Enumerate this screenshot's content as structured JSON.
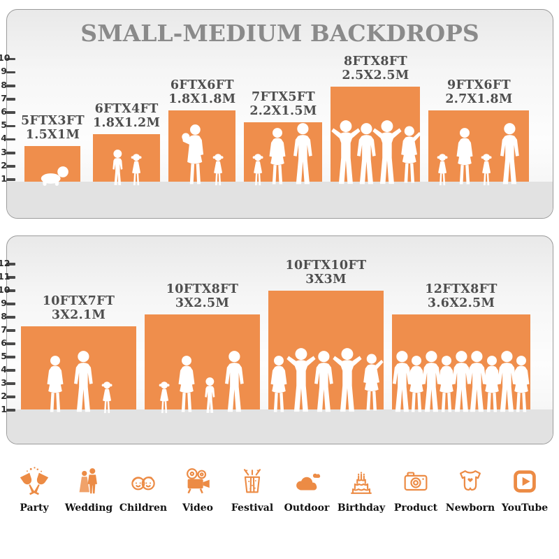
{
  "title": "SMALL-MEDIUM BACKDROPS",
  "accent_color": "#EF8E4C",
  "icon_color": "#EC8B45",
  "panels": [
    {
      "name": "small-backdrops-panel",
      "ruler_max": 10,
      "items": [
        {
          "size_ft": "5FTX3FT",
          "size_m": "1.5X1M",
          "width_ft": 5,
          "height_ft": 3,
          "figures": [
            "crawling-baby"
          ]
        },
        {
          "size_ft": "6FTX4FT",
          "size_m": "1.8X1.2M",
          "width_ft": 6,
          "height_ft": 4,
          "figures": [
            "boy",
            "girl"
          ]
        },
        {
          "size_ft": "6FTX6FT",
          "size_m": "1.8X1.8M",
          "width_ft": 6,
          "height_ft": 6,
          "figures": [
            "woman-holding-baby",
            "girl"
          ]
        },
        {
          "size_ft": "7FTX5FT",
          "size_m": "2.2X1.5M",
          "width_ft": 7,
          "height_ft": 5,
          "figures": [
            "girl",
            "woman",
            "man"
          ]
        },
        {
          "size_ft": "8FTX8FT",
          "size_m": "2.5X2.5M",
          "width_ft": 8,
          "height_ft": 8,
          "figures": [
            "man-arms-up",
            "man",
            "man-arms-up",
            "woman-arm-up"
          ]
        },
        {
          "size_ft": "9FTX6FT",
          "size_m": "2.7X1.8M",
          "width_ft": 9,
          "height_ft": 6,
          "figures": [
            "girl",
            "woman",
            "girl",
            "man"
          ]
        }
      ]
    },
    {
      "name": "medium-backdrops-panel",
      "ruler_max": 12,
      "items": [
        {
          "size_ft": "10FTX7FT",
          "size_m": "3X2.1M",
          "width_ft": 10,
          "height_ft": 7,
          "figures": [
            "woman",
            "man",
            "girl"
          ]
        },
        {
          "size_ft": "10FTX8FT",
          "size_m": "3X2.5M",
          "width_ft": 10,
          "height_ft": 8,
          "figures": [
            "girl",
            "woman",
            "boy",
            "man"
          ]
        },
        {
          "size_ft": "10FTX10FT",
          "size_m": "3X3M",
          "width_ft": 10,
          "height_ft": 10,
          "figures": [
            "woman",
            "man-arms-up",
            "man",
            "man-arms-up",
            "woman-arm-up"
          ]
        },
        {
          "size_ft": "12FTX8FT",
          "size_m": "3.6X2.5M",
          "width_ft": 12,
          "height_ft": 8,
          "figures": [
            "man",
            "woman",
            "man",
            "woman",
            "man",
            "man",
            "woman",
            "man",
            "woman"
          ]
        }
      ]
    }
  ],
  "categories": [
    {
      "label": "Party",
      "icon": "party-icon"
    },
    {
      "label": "Wedding",
      "icon": "wedding-icon"
    },
    {
      "label": "Children",
      "icon": "children-icon"
    },
    {
      "label": "Video",
      "icon": "video-icon"
    },
    {
      "label": "Festival",
      "icon": "festival-icon"
    },
    {
      "label": "Outdoor",
      "icon": "outdoor-icon"
    },
    {
      "label": "Birthday",
      "icon": "birthday-icon"
    },
    {
      "label": "Product",
      "icon": "product-icon"
    },
    {
      "label": "Newborn",
      "icon": "newborn-icon"
    },
    {
      "label": "YouTube",
      "icon": "youtube-icon"
    }
  ]
}
